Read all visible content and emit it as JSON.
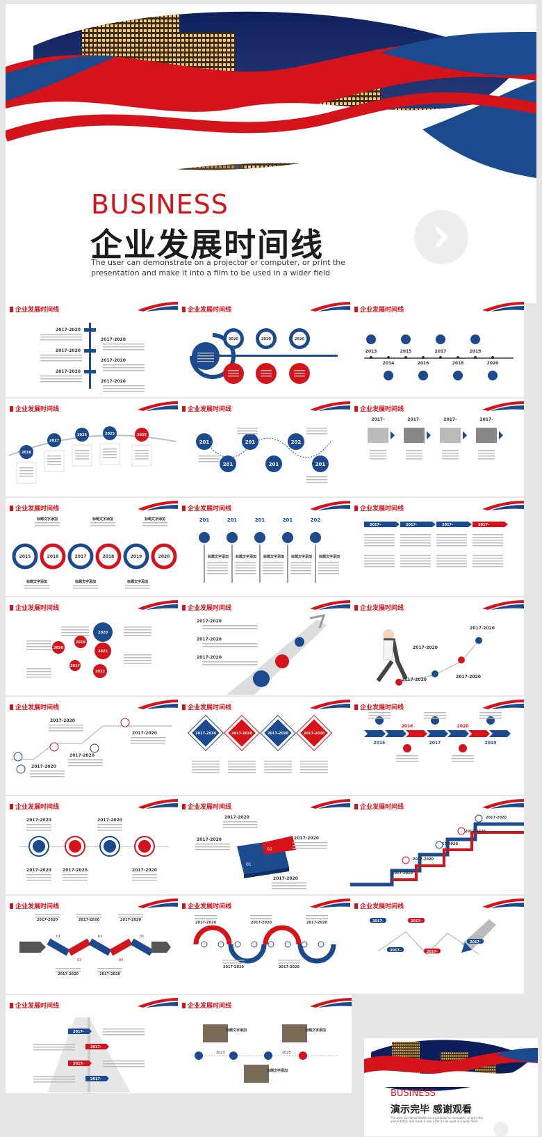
{
  "hero": {
    "business": "BUSINESS",
    "title": "企业发展时间线",
    "subtitle": "The user can demonstrate on a projector or computer, or print the presentation and make it into a film to be used in a wider field"
  },
  "slide_header": "企业发展时间线",
  "colors": {
    "red": "#d4131b",
    "blue": "#1b4a8e",
    "gray": "#bdbdbd"
  },
  "labels": {
    "range": "2017-2020",
    "title_text": "标题文字添加",
    "year_short": "2017-"
  },
  "years": {
    "a": [
      "2015",
      "2016",
      "2017",
      "2018",
      "2019",
      "2020"
    ],
    "b": [
      "2013",
      "2014",
      "2015",
      "2016",
      "2017",
      "2018",
      "2019",
      "2020"
    ],
    "c": [
      "2016",
      "2017",
      "2025",
      "2025",
      "2025"
    ],
    "d": [
      "201",
      "201",
      "201",
      "201",
      "202"
    ],
    "e": [
      "2020",
      "2019",
      "2021",
      "2017",
      "2022"
    ],
    "f": [
      "2015",
      "2016",
      "2017",
      "2020",
      "2019"
    ],
    "g": [
      "01",
      "02",
      "03",
      "04",
      "05"
    ],
    "h": [
      "2023",
      "2025"
    ]
  },
  "final": {
    "business": "BUSINESS",
    "title": "演示完毕 感谢观看",
    "subtitle": "The user can demonstrate on a projector or computer, or print the presentation and make it into a film to be used in a wider field"
  }
}
